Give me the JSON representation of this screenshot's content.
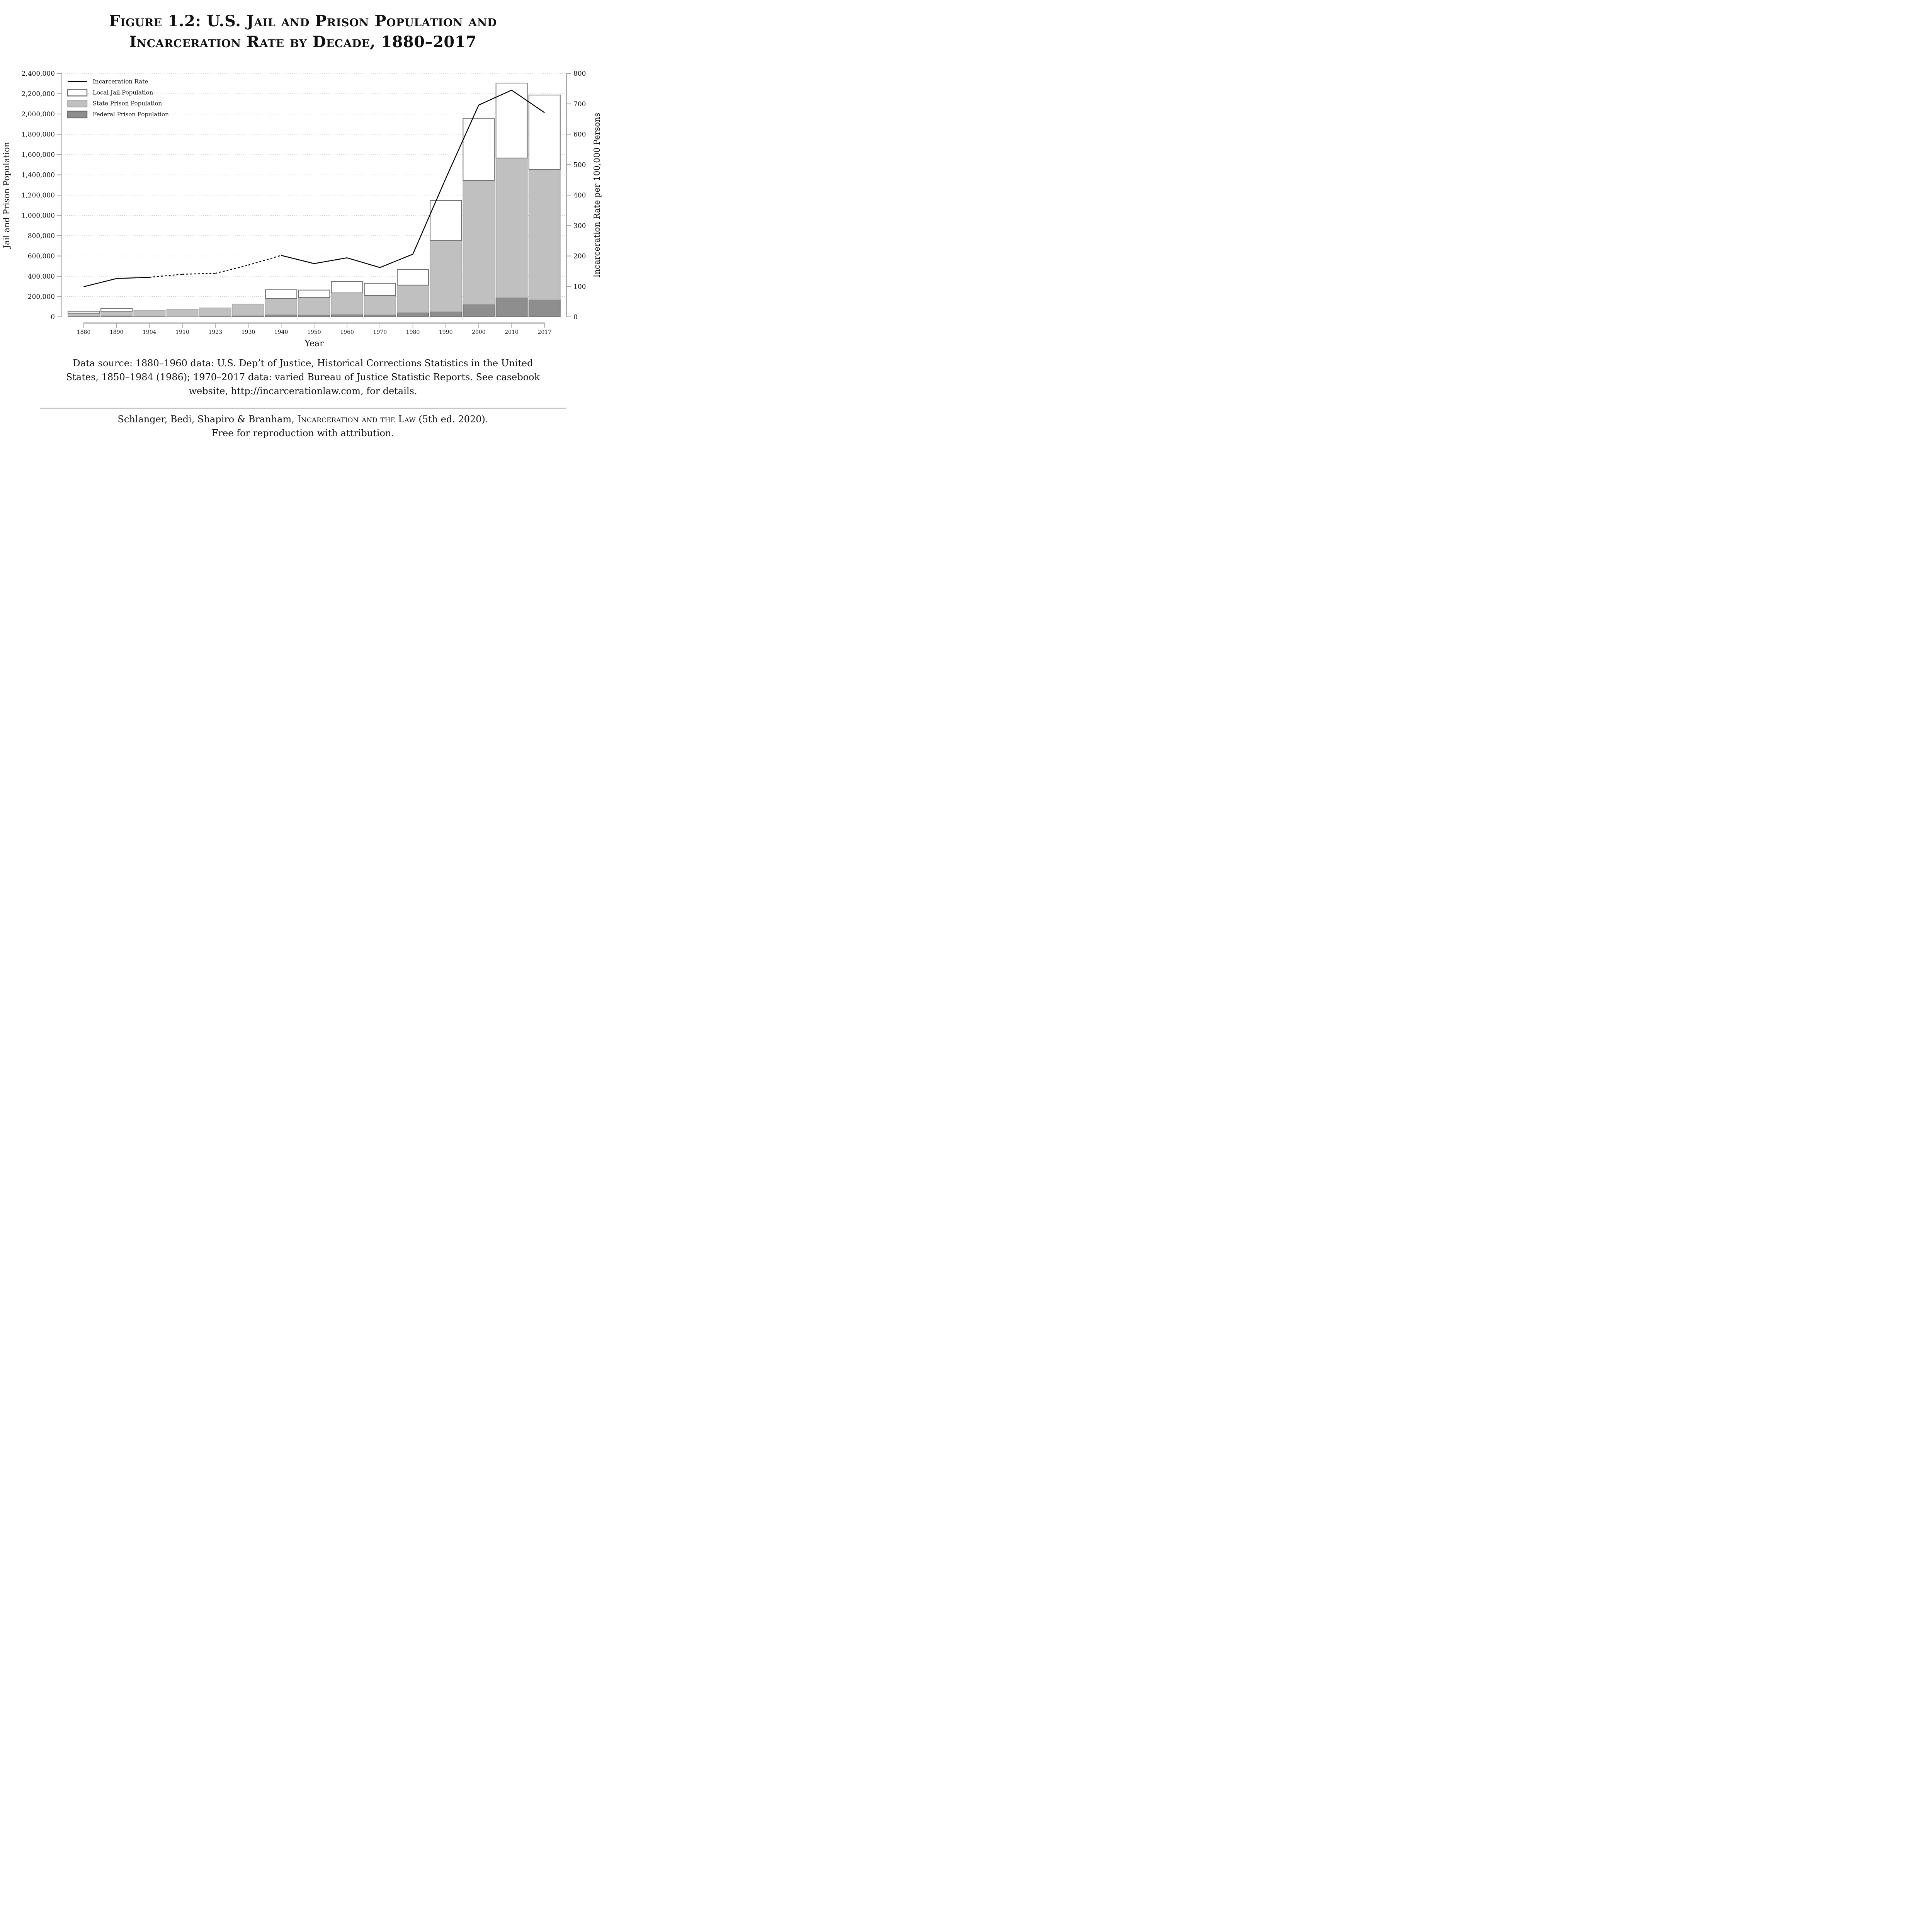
{
  "title": {
    "line1": "Figure 1.2: U.S. Jail and Prison Population and",
    "line2": "Incarceration Rate by Decade, 1880–2017"
  },
  "source": {
    "line1": "Data source: 1880–1960 data: U.S. Dep’t of Justice, Historical Corrections Statistics in the United",
    "line2": "States, 1850–1984 (1986); 1970–2017 data: varied Bureau of Justice Statistic Reports. See casebook",
    "line3": "website, http://incarcerationlaw.com, for details."
  },
  "credit": {
    "authors": "Schlanger, Bedi, Shapiro & Branham, ",
    "book": "Incarceration and the Law",
    "edition": " (5th ed. 2020).",
    "line2": "Free for reproduction with attribution."
  },
  "colors": {
    "federal": "#8e8e8e",
    "federal_edge": "#707070",
    "state": "#c0c0c0",
    "state_edge": "#b0b0b0",
    "jail": "#ffffff",
    "jail_edge": "#707070",
    "axis": "#a6a6a6",
    "grid": "#b4b4b4",
    "line": "#000000"
  },
  "chart_data": {
    "type": "bar",
    "stacked": true,
    "title": "U.S. Jail and Prison Population and Incarceration Rate by Decade, 1880–2017",
    "xlabel": "Year",
    "ylabel": "Jail and Prison Population",
    "ylabel_right": "Incarceration Rate per 100,000 Persons",
    "categories": [
      "1880",
      "1890",
      "1904",
      "1910",
      "1923",
      "1930",
      "1940",
      "1950",
      "1960",
      "1970",
      "1980",
      "1990",
      "2000",
      "2010",
      "2017"
    ],
    "ylim": [
      0,
      2400000
    ],
    "yticks": [
      "0",
      "200,000",
      "400,000",
      "600,000",
      "800,000",
      "1,000,000",
      "1,200,000",
      "1,400,000",
      "1,600,000",
      "1,800,000",
      "2,000,000",
      "2,200,000",
      "2,400,000"
    ],
    "ytick_values": [
      0,
      200000,
      400000,
      600000,
      800000,
      1000000,
      1200000,
      1400000,
      1600000,
      1800000,
      2000000,
      2200000,
      2400000
    ],
    "ylim_right": [
      0,
      800
    ],
    "yticks_right": [
      "0",
      "100",
      "200",
      "300",
      "400",
      "500",
      "600",
      "700",
      "800"
    ],
    "ytick_right_values": [
      0,
      100,
      200,
      300,
      400,
      500,
      600,
      700,
      800
    ],
    "grid": true,
    "legend_position": "top-left",
    "legend": [
      {
        "label": "Incarceration Rate",
        "kind": "line"
      },
      {
        "label": "Local Jail Population",
        "kind": "jail"
      },
      {
        "label": "State Prison Population",
        "kind": "state"
      },
      {
        "label": "Federal Prison Population",
        "kind": "federal"
      }
    ],
    "series": [
      {
        "name": "Federal Prison Population",
        "values": [
          8000,
          10000,
          7000,
          5000,
          8000,
          13000,
          23000,
          19000,
          27000,
          22000,
          45000,
          53000,
          126000,
          191000,
          168000
        ]
      },
      {
        "name": "State Prison Population",
        "values": [
          28000,
          41000,
          55000,
          69000,
          80000,
          113000,
          156000,
          171000,
          209000,
          188000,
          268000,
          698000,
          1219000,
          1375000,
          1284000
        ]
      },
      {
        "name": "Local Jail Population",
        "values": [
          19000,
          33000,
          0,
          0,
          0,
          0,
          88000,
          74000,
          111000,
          121000,
          155000,
          396000,
          613000,
          739000,
          735000
        ]
      }
    ],
    "line_series": {
      "name": "Incarceration Rate",
      "axis": "right",
      "values": [
        99,
        126,
        130,
        140,
        143,
        170,
        202,
        175,
        194,
        162,
        206,
        455,
        696,
        745,
        671
      ],
      "dashed_between": [
        "1904",
        "1940"
      ]
    }
  }
}
